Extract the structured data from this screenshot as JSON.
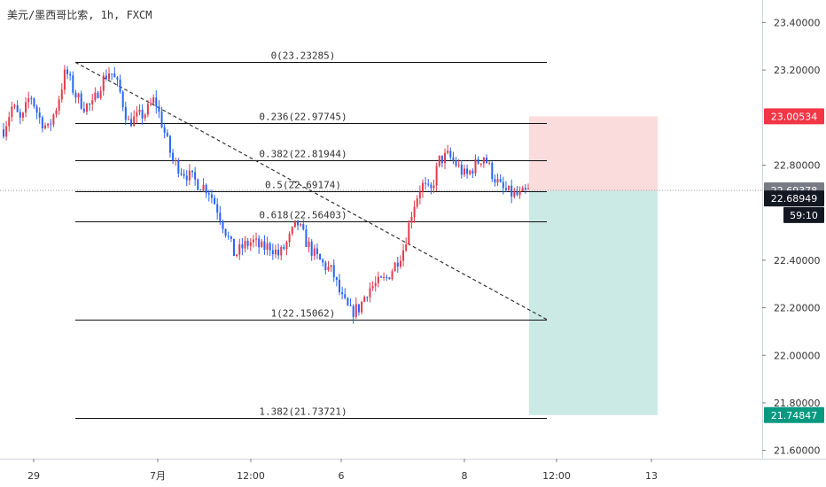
{
  "header": {
    "title": "美元/墨西哥比索, 1h, FXCM"
  },
  "colors": {
    "up": "#e33b4b",
    "down": "#2962ff",
    "fib_line": "#111111",
    "trend": "#333333",
    "stop_zone": "#fbdcdc",
    "target_zone": "#cbeae6",
    "tag_red": "#f23645",
    "tag_grey": "#787b86",
    "tag_dark": "#131722",
    "tag_green": "#089981"
  },
  "chart_data": {
    "type": "candlestick",
    "symbol": "美元/墨西哥比索",
    "interval": "1h",
    "source": "FXCM",
    "ylim": [
      21.58,
      23.45
    ],
    "y_ticks": [
      "23.40000",
      "23.20000",
      "22.80000",
      "22.40000",
      "22.20000",
      "22.00000",
      "21.80000",
      "21.60000"
    ],
    "x_ticks": [
      "29",
      "7月",
      "12:00",
      "6",
      "8",
      "12:00",
      "13"
    ],
    "fib_levels": [
      {
        "label": "0(23.23285)",
        "value": 23.23285
      },
      {
        "label": "0.236(22.97745)",
        "value": 22.97745
      },
      {
        "label": "0.382(22.81944)",
        "value": 22.81944
      },
      {
        "label": "0.5(22.69174)",
        "value": 22.69174
      },
      {
        "label": "0.618(22.56403)",
        "value": 22.56403
      },
      {
        "label": "1(22.15062)",
        "value": 22.15062
      },
      {
        "label": "1.382(21.73721)",
        "value": 21.73721
      }
    ],
    "trend_line": {
      "from": 23.23285,
      "to": 22.15062
    },
    "position": {
      "entry": 22.69174,
      "stop": 23.00534,
      "target": 21.74847
    },
    "price_tags": [
      {
        "label": "23.00534",
        "value": 23.00534,
        "style": "red"
      },
      {
        "label": "22.69378",
        "value": 22.69378,
        "style": "grey"
      },
      {
        "label": "22.68949",
        "value": 22.66,
        "style": "dark"
      },
      {
        "label": "59:10",
        "value": 22.59,
        "style": "countdown"
      },
      {
        "label": "21.74847",
        "value": 21.74847,
        "style": "green"
      }
    ],
    "price_path": [
      22.95,
      23.05,
      22.98,
      23.1,
      23.0,
      22.95,
      23.05,
      23.2,
      23.1,
      23.05,
      23.05,
      23.15,
      23.2,
      23.12,
      22.98,
      23.0,
      23.02,
      23.08,
      22.95,
      22.82,
      22.78,
      22.75,
      22.72,
      22.7,
      22.62,
      22.52,
      22.42,
      22.46,
      22.48,
      22.45,
      22.46,
      22.42,
      22.48,
      22.56,
      22.48,
      22.42,
      22.38,
      22.35,
      22.24,
      22.18,
      22.2,
      22.28,
      22.3,
      22.32,
      22.38,
      22.45,
      22.62,
      22.72,
      22.68,
      22.82,
      22.84,
      22.8,
      22.75,
      22.8,
      22.84,
      22.76,
      22.7,
      22.68,
      22.67,
      22.69
    ]
  }
}
